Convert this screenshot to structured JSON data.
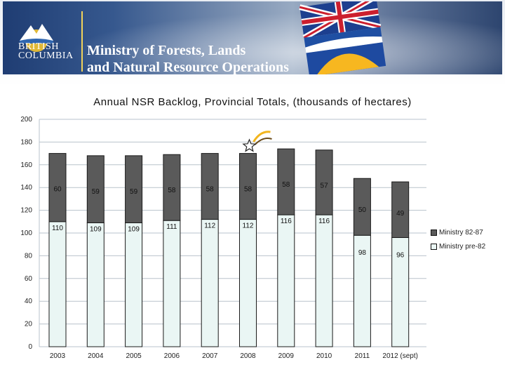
{
  "header": {
    "logo_line1": "BRITISH",
    "logo_line2": "COLUMBIA",
    "ministry_line1": "Ministry of Forests, Lands",
    "ministry_line2": "and Natural Resource Operations"
  },
  "colors": {
    "series_82_87": "#5a5a5a",
    "series_pre_82": "#eaf6f4",
    "bar_edge": "#1a1a1a",
    "gridline": "#b9c3cc"
  },
  "chart_data": {
    "type": "bar",
    "stacked": true,
    "title": "Annual NSR Backlog, Provincial Totals, (thousands of hectares)",
    "xlabel": "",
    "ylabel": "",
    "categories": [
      "2003",
      "2004",
      "2005",
      "2006",
      "2007",
      "2008",
      "2009",
      "2010",
      "2011",
      "2012 (sept)"
    ],
    "series": [
      {
        "name": "Ministry pre-82",
        "values": [
          110,
          109,
          109,
          111,
          112,
          112,
          116,
          116,
          98,
          96
        ]
      },
      {
        "name": "Ministry 82-87",
        "values": [
          60,
          59,
          59,
          58,
          58,
          58,
          58,
          57,
          50,
          49
        ]
      }
    ],
    "ylim": [
      0,
      200
    ],
    "yticks": [
      0,
      20,
      40,
      60,
      80,
      100,
      120,
      140,
      160,
      180,
      200
    ],
    "grid": true,
    "legend_position": "right",
    "annotation": "shooting-star-icon above 2008"
  }
}
